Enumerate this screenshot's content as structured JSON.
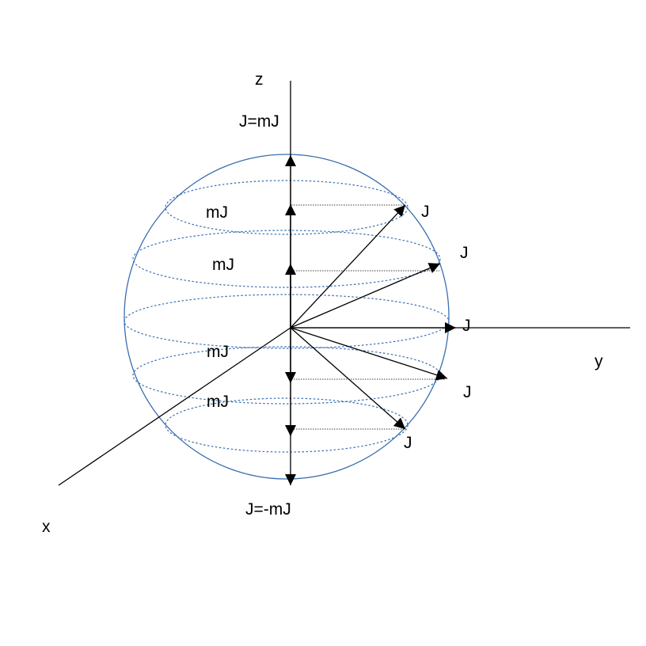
{
  "colors": {
    "sphere": "#3a6fb0",
    "rings": "#3a6fb0",
    "lines": "#000000"
  },
  "labels": {
    "z_axis": "z",
    "y_axis": "y",
    "x_axis": "x",
    "top": "J=mJ",
    "bottom": "J=-mJ",
    "mj_1": "mJ",
    "mj_2": "mJ",
    "mj_3": "mJ",
    "mj_4": "mJ",
    "j_1": "J",
    "j_2": "J",
    "j_3": "J",
    "j_4": "J",
    "j_5": "J"
  }
}
